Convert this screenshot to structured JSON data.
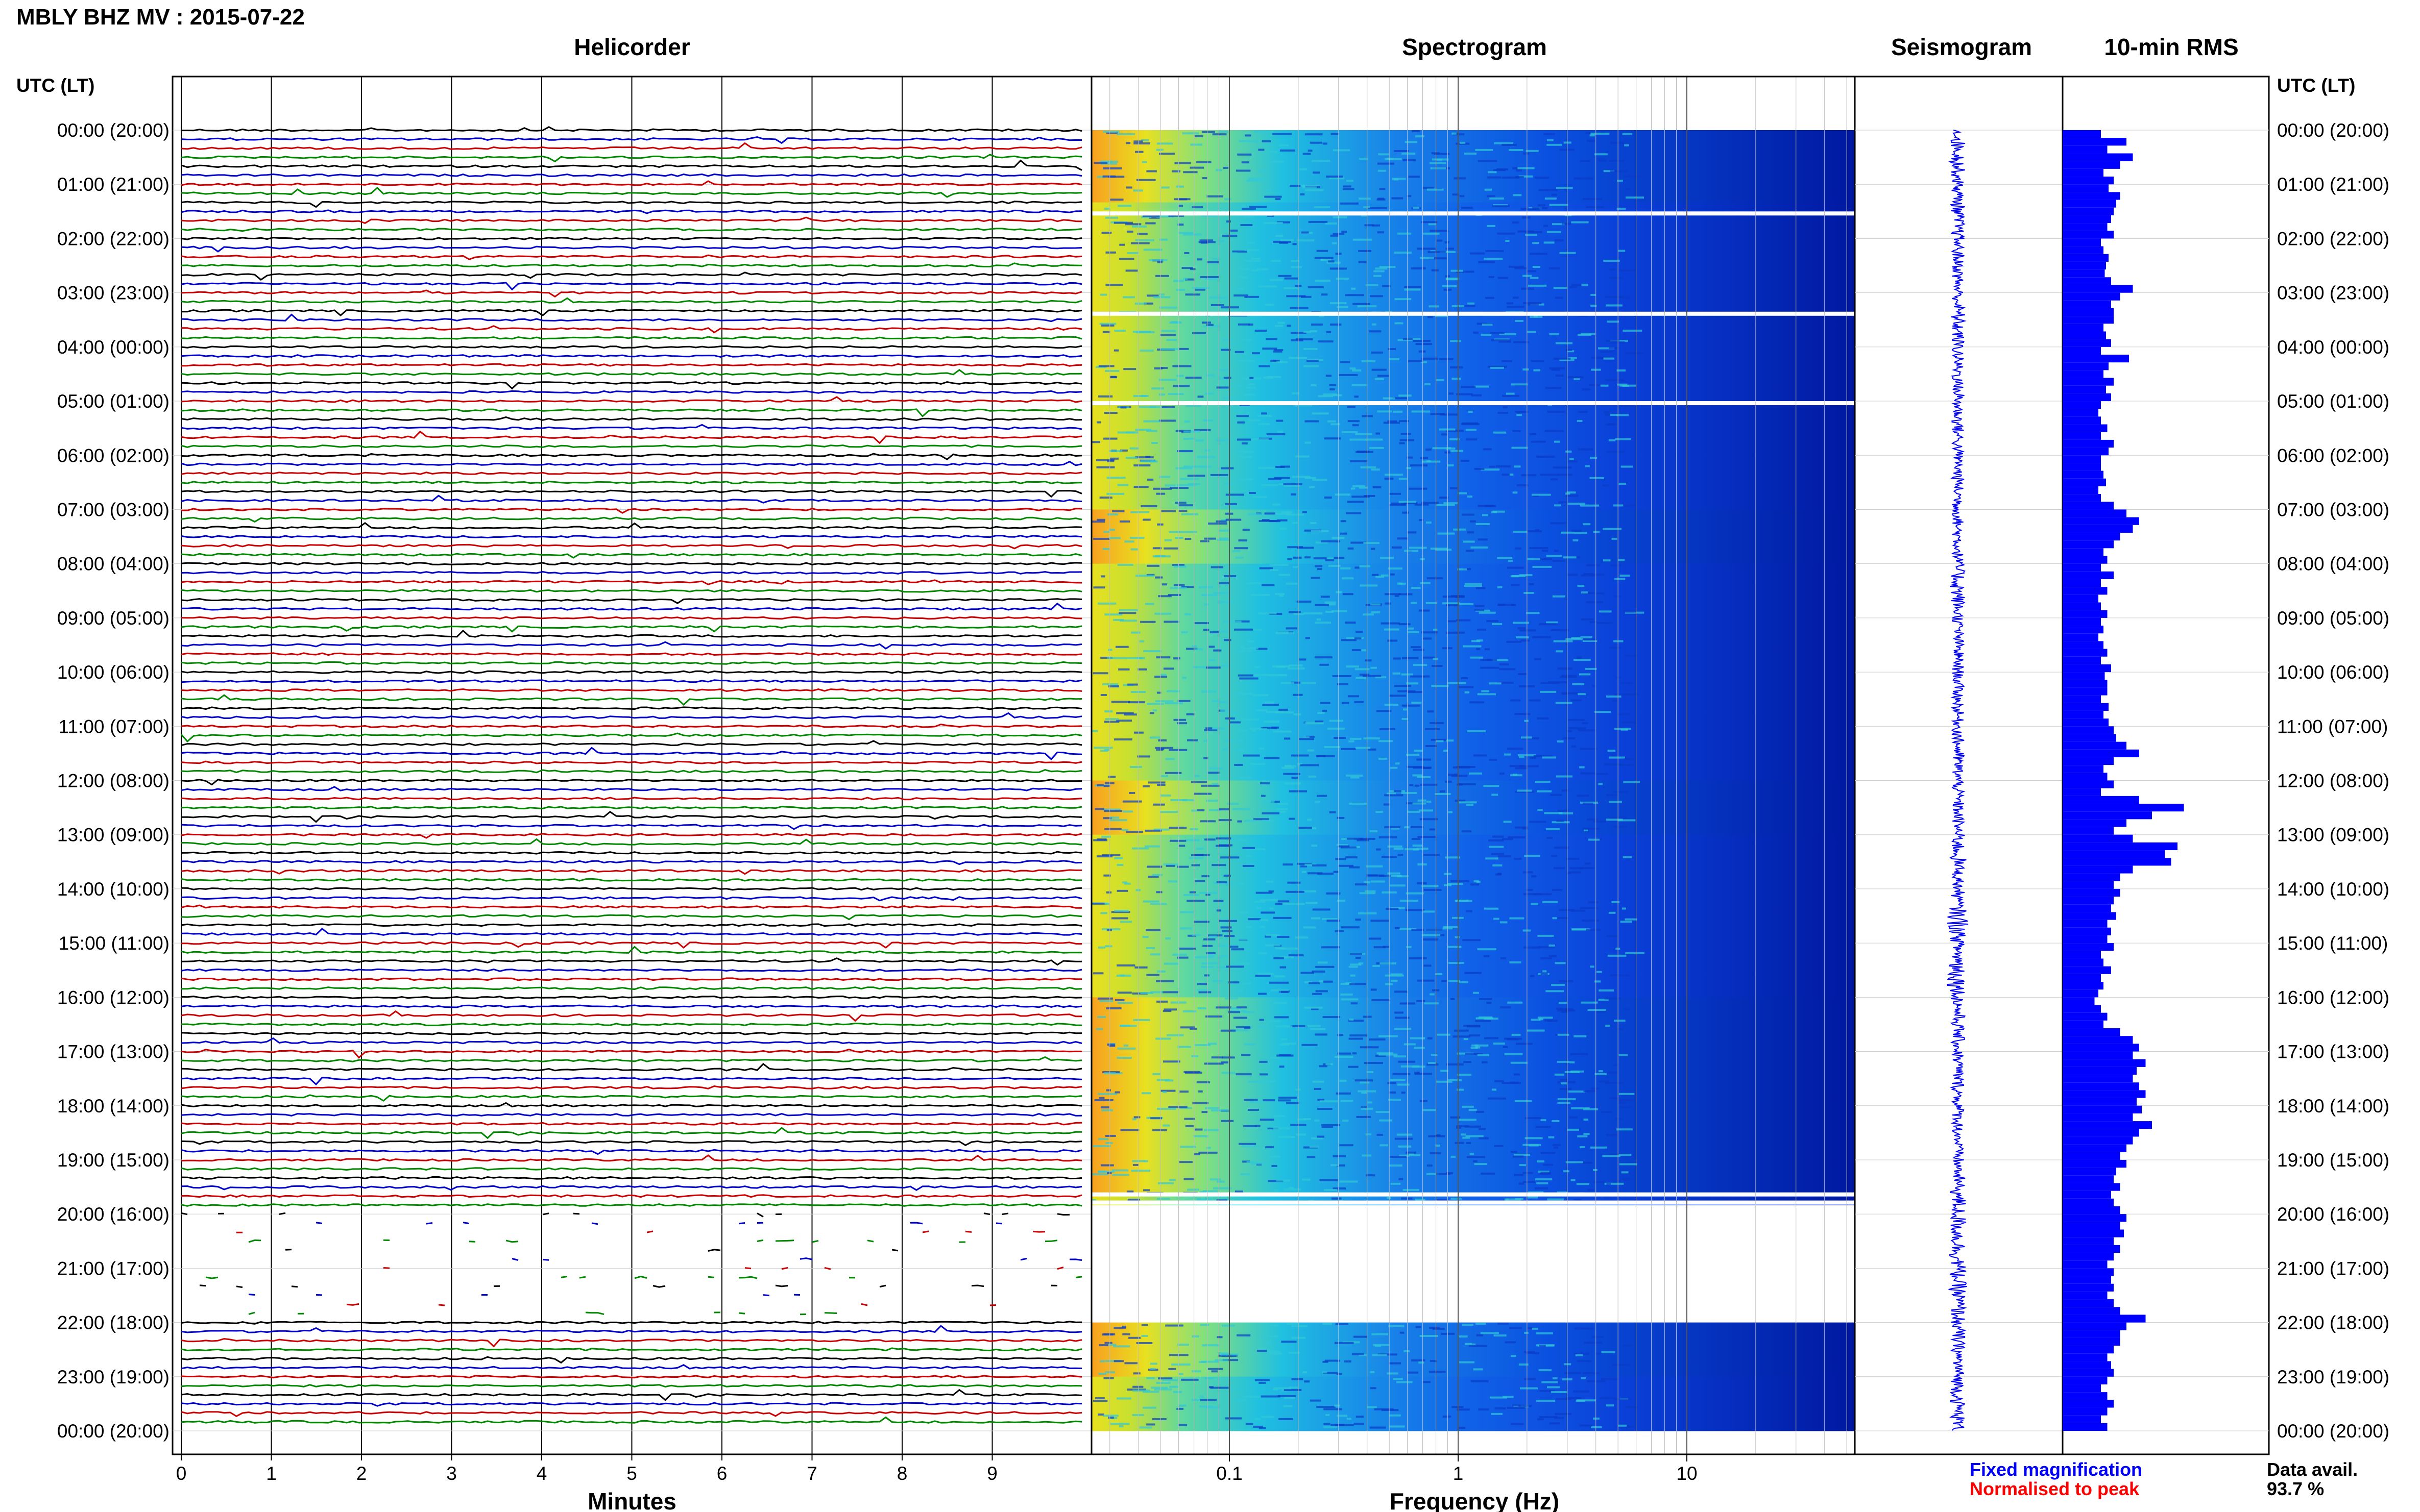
{
  "header": {
    "title": "MBLY BHZ MV : 2015-07-22",
    "utc_lt_left": "UTC (LT)",
    "utc_lt_right": "UTC (LT)"
  },
  "panels": {
    "helicorder": "Helicorder",
    "spectrogram": "Spectrogram",
    "seismogram": "Seismogram",
    "rms": "10-min RMS"
  },
  "axes": {
    "minutes_label": "Minutes",
    "frequency_label": "Frequency (Hz)",
    "minute_ticks": [
      "0",
      "1",
      "2",
      "3",
      "4",
      "5",
      "6",
      "7",
      "8",
      "9"
    ],
    "frequency_ticks": [
      "0.1",
      "1",
      "10"
    ]
  },
  "time_labels": [
    "00:00 (20:00)",
    "01:00 (21:00)",
    "02:00 (22:00)",
    "03:00 (23:00)",
    "04:00 (00:00)",
    "05:00 (01:00)",
    "06:00 (02:00)",
    "07:00 (03:00)",
    "08:00 (04:00)",
    "09:00 (05:00)",
    "10:00 (06:00)",
    "11:00 (07:00)",
    "12:00 (08:00)",
    "13:00 (09:00)",
    "14:00 (10:00)",
    "15:00 (11:00)",
    "16:00 (12:00)",
    "17:00 (13:00)",
    "18:00 (14:00)",
    "19:00 (15:00)",
    "20:00 (16:00)",
    "21:00 (17:00)",
    "22:00 (18:00)",
    "23:00 (19:00)",
    "00:00 (20:00)"
  ],
  "legend": {
    "fixed": "Fixed magnification",
    "normalised": "Normalised to peak",
    "fixed_color": "#0000ff",
    "normalised_color": "#ff0000"
  },
  "data_avail": {
    "label": "Data avail.",
    "value": "93.7 %"
  },
  "colors": {
    "trace_cycle": [
      "#000000",
      "#0000cc",
      "#cc0000",
      "#008800"
    ],
    "rms_bar": "#0000ff",
    "spectrogram_low": "#00008b",
    "spectrogram_high": "#ff0000"
  },
  "chart_data": {
    "type": "bar",
    "rms_per_10min_relative": [
      0.3,
      0.5,
      0.35,
      0.55,
      0.45,
      0.32,
      0.4,
      0.36,
      0.45,
      0.42,
      0.4,
      0.38,
      0.35,
      0.4,
      0.3,
      0.32,
      0.36,
      0.34,
      0.33,
      0.38,
      0.55,
      0.45,
      0.38,
      0.4,
      0.4,
      0.32,
      0.34,
      0.38,
      0.3,
      0.52,
      0.36,
      0.32,
      0.4,
      0.34,
      0.38,
      0.3,
      0.28,
      0.3,
      0.35,
      0.3,
      0.4,
      0.36,
      0.3,
      0.3,
      0.32,
      0.34,
      0.28,
      0.3,
      0.4,
      0.5,
      0.6,
      0.55,
      0.45,
      0.4,
      0.32,
      0.35,
      0.3,
      0.4,
      0.3,
      0.35,
      0.28,
      0.3,
      0.35,
      0.3,
      0.32,
      0.28,
      0.32,
      0.35,
      0.3,
      0.38,
      0.33,
      0.35,
      0.35,
      0.3,
      0.36,
      0.32,
      0.36,
      0.4,
      0.42,
      0.5,
      0.6,
      0.4,
      0.32,
      0.35,
      0.4,
      0.3,
      0.6,
      0.95,
      0.7,
      0.5,
      0.4,
      0.55,
      0.9,
      0.8,
      0.85,
      0.55,
      0.45,
      0.4,
      0.45,
      0.4,
      0.38,
      0.42,
      0.35,
      0.38,
      0.35,
      0.4,
      0.3,
      0.32,
      0.38,
      0.3,
      0.32,
      0.28,
      0.25,
      0.3,
      0.35,
      0.32,
      0.45,
      0.55,
      0.6,
      0.55,
      0.65,
      0.58,
      0.55,
      0.6,
      0.65,
      0.58,
      0.62,
      0.55,
      0.7,
      0.6,
      0.55,
      0.5,
      0.45,
      0.5,
      0.42,
      0.4,
      0.45,
      0.38,
      0.4,
      0.45,
      0.5,
      0.45,
      0.48,
      0.4,
      0.45,
      0.4,
      0.35,
      0.4,
      0.38,
      0.4,
      0.35,
      0.4,
      0.45,
      0.65,
      0.5,
      0.45,
      0.45,
      0.4,
      0.35,
      0.38,
      0.4,
      0.35,
      0.3,
      0.35,
      0.4,
      0.35,
      0.3,
      0.35
    ]
  }
}
